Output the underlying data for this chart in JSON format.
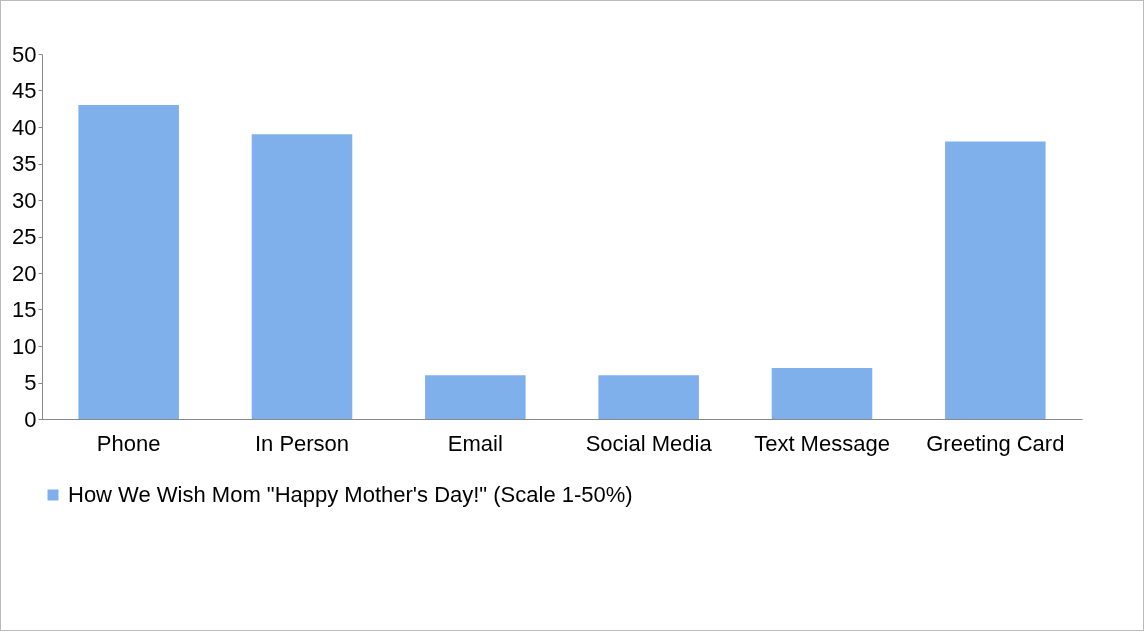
{
  "chart_data": {
    "type": "bar",
    "categories": [
      "Phone",
      "In Person",
      "Email",
      "Social Media",
      "Text Message",
      "Greeting Card"
    ],
    "series": [
      {
        "name": "How We Wish Mom \"Happy Mother's Day!\" (Scale 1-50%)",
        "color": "#7fb0ec",
        "values": [
          43,
          39,
          6,
          6,
          7,
          38
        ]
      }
    ],
    "ylim": [
      0,
      50
    ],
    "yticks": [
      0,
      5,
      10,
      15,
      20,
      25,
      30,
      35,
      40,
      45,
      50
    ],
    "grid": false,
    "legend": "bottom"
  }
}
